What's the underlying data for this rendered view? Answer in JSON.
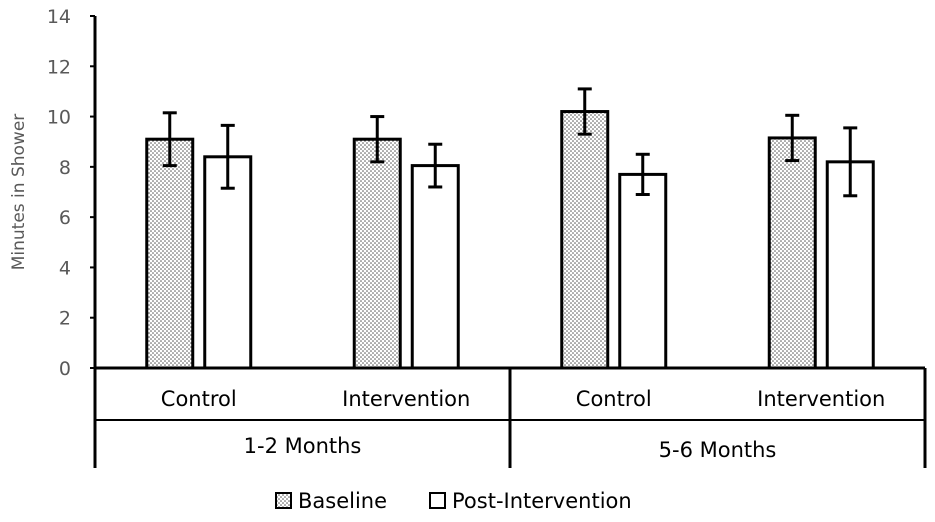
{
  "chart_data": {
    "type": "bar",
    "title": "",
    "xlabel": "",
    "ylabel": "Minutes in Shower",
    "ylim": [
      0,
      14
    ],
    "yticks": [
      0,
      2,
      4,
      6,
      8,
      10,
      12,
      14
    ],
    "groups": [
      {
        "label": "1-2 Months",
        "categories": [
          "Control",
          "Intervention"
        ]
      },
      {
        "label": "5-6 Months",
        "categories": [
          "Control",
          "Intervention"
        ]
      }
    ],
    "categories": [
      "Control",
      "Intervention",
      "Control",
      "Intervention"
    ],
    "series": [
      {
        "name": "Baseline",
        "pattern": "dotted",
        "values": [
          9.1,
          9.1,
          10.2,
          9.15
        ],
        "errors": [
          1.05,
          0.9,
          0.9,
          0.9
        ]
      },
      {
        "name": "Post-Intervention",
        "pattern": "white",
        "values": [
          8.4,
          8.05,
          7.7,
          8.2
        ],
        "errors": [
          1.25,
          0.85,
          0.8,
          1.35
        ]
      }
    ],
    "legend_position": "bottom",
    "colors": {
      "axis": "#000000",
      "tick_text": "#595959",
      "bar_border": "#000000",
      "post_fill": "#ffffff",
      "dot": "#555555"
    }
  }
}
